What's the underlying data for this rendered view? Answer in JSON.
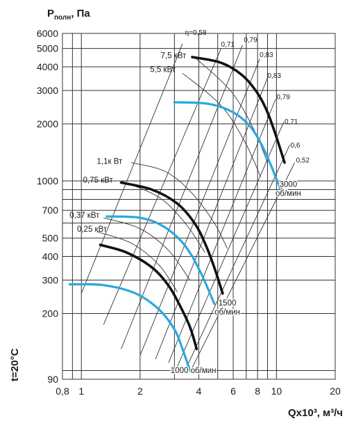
{
  "chart_data": {
    "type": "line",
    "title": "",
    "ylabel_html": "P<sub>полн</sub>, Па",
    "ylabel_main": "P",
    "ylabel_sub": "полн",
    "ylabel_tail": ", Па",
    "xlabel": "Qx10³, м³/ч",
    "side_label": "t=20°C",
    "x_scale": "log",
    "y_scale": "log",
    "xlim": [
      0.8,
      20
    ],
    "ylim": [
      90,
      6000
    ],
    "x_ticks": [
      0.8,
      1,
      2,
      4,
      6,
      8,
      10,
      20
    ],
    "x_tick_labels": [
      "0,8",
      "1",
      "2",
      "4",
      "6",
      "8",
      "10",
      "20"
    ],
    "x_grid": [
      0.8,
      0.9,
      1,
      2,
      3,
      4,
      5,
      6,
      7,
      8,
      9,
      10,
      20
    ],
    "y_ticks": [
      90,
      200,
      300,
      400,
      500,
      700,
      1000,
      2000,
      3000,
      4000,
      5000,
      6000
    ],
    "y_tick_labels": [
      "90",
      "200",
      "300",
      "400",
      "500",
      "700",
      "1000",
      "2000",
      "3000",
      "4000",
      "5000",
      "6000"
    ],
    "y_grid": [
      90,
      100,
      200,
      300,
      400,
      500,
      600,
      700,
      800,
      900,
      1000,
      2000,
      3000,
      4000,
      5000,
      6000
    ],
    "grid": true,
    "series": [
      {
        "name": "7,5 кВт",
        "style": "black",
        "x": [
          3.7,
          5.2,
          6.7,
          8.0,
          9.0,
          10.0,
          11.0
        ],
        "y": [
          4500,
          4200,
          3600,
          2900,
          2300,
          1700,
          1250
        ]
      },
      {
        "name": "5,5 кВт",
        "style": "blue",
        "x": [
          3.0,
          4.5,
          6.0,
          7.3,
          8.4,
          9.4,
          10.4
        ],
        "y": [
          2600,
          2550,
          2300,
          1950,
          1550,
          1200,
          920
        ]
      },
      {
        "name": "0,75 кВт",
        "style": "black",
        "x": [
          1.6,
          2.3,
          3.1,
          3.8,
          4.3,
          4.8,
          5.3
        ],
        "y": [
          980,
          900,
          760,
          600,
          470,
          350,
          255
        ]
      },
      {
        "name": "0,37 кВт",
        "style": "blue",
        "x": [
          1.35,
          2.0,
          2.6,
          3.2,
          3.7,
          4.2,
          4.8
        ],
        "y": [
          650,
          640,
          580,
          490,
          400,
          310,
          225
        ]
      },
      {
        "name": "0,25 кВт",
        "style": "black",
        "x": [
          1.25,
          1.7,
          2.3,
          2.8,
          3.2,
          3.6,
          3.9
        ],
        "y": [
          460,
          420,
          350,
          280,
          220,
          170,
          130
        ]
      },
      {
        "name": "",
        "style": "blue",
        "x": [
          0.87,
          1.3,
          1.9,
          2.5,
          3.0,
          3.3,
          3.6
        ],
        "y": [
          285,
          282,
          255,
          210,
          165,
          130,
          100
        ]
      }
    ],
    "efficiency_lines": [
      {
        "label": "η=0,58",
        "lx": 3.4,
        "ly": 5900,
        "x": [
          1.0,
          3.3
        ],
        "y": [
          255,
          5300
        ]
      },
      {
        "label": "0,71",
        "lx": 5.2,
        "ly": 5100,
        "x": [
          1.3,
          5.2
        ],
        "y": [
          175,
          5000
        ]
      },
      {
        "label": "0,79",
        "lx": 6.8,
        "ly": 5400,
        "x": [
          1.6,
          6.7
        ],
        "y": [
          130,
          5200
        ]
      },
      {
        "label": "0,83",
        "lx": 8.2,
        "ly": 4500,
        "x": [
          2.0,
          8.2
        ],
        "y": [
          120,
          4400
        ]
      },
      {
        "label": "0,83",
        "lx": 9.0,
        "ly": 3500,
        "x": [
          2.4,
          9.0
        ],
        "y": [
          115,
          3500
        ]
      },
      {
        "label": "0,79",
        "lx": 10.0,
        "ly": 2700,
        "x": [
          2.8,
          9.9
        ],
        "y": [
          110,
          2700
        ]
      },
      {
        "label": "0,71",
        "lx": 11.0,
        "ly": 2000,
        "x": [
          3.1,
          10.9
        ],
        "y": [
          105,
          2050
        ]
      },
      {
        "label": "0,6",
        "lx": 11.8,
        "ly": 1500,
        "x": [
          3.4,
          11.7
        ],
        "y": [
          100,
          1550
        ]
      },
      {
        "label": "0,52",
        "lx": 12.6,
        "ly": 1250,
        "x": [
          3.6,
          12.4
        ],
        "y": [
          98,
          1250
        ]
      }
    ],
    "power_arcs": [
      {
        "label": "7,5 кВт",
        "lx": 2.55,
        "ly": 4450,
        "x": [
          3.8,
          5.8,
          7.6,
          9.0
        ],
        "y": [
          4500,
          3000,
          1900,
          1250
        ]
      },
      {
        "label": "5,5 кВт",
        "lx": 2.25,
        "ly": 3750,
        "x": [
          3.3,
          5.2,
          6.9,
          8.3
        ],
        "y": [
          3700,
          2500,
          1600,
          1050
        ]
      },
      {
        "label": "1,1к Вт",
        "lx": 1.2,
        "ly": 1230,
        "x": [
          1.8,
          2.7,
          3.7,
          4.8,
          5.6
        ],
        "y": [
          1250,
          1120,
          860,
          600,
          440
        ]
      },
      {
        "label": "0,75 кВт",
        "lx": 1.02,
        "ly": 980,
        "x": [
          1.6,
          2.5,
          3.4,
          4.3
        ],
        "y": [
          1000,
          820,
          600,
          420
        ]
      },
      {
        "label": "0,37 кВт",
        "lx": 0.87,
        "ly": 640,
        "x": [
          1.3,
          2.0,
          2.8,
          3.6
        ],
        "y": [
          640,
          560,
          430,
          300
        ]
      },
      {
        "label": "0,25 кВт",
        "lx": 0.95,
        "ly": 540,
        "x": [
          1.2,
          1.8,
          2.5,
          3.1
        ],
        "y": [
          540,
          470,
          360,
          260
        ]
      }
    ],
    "speed_labels": [
      {
        "line1": "3000",
        "line2": "об/мин",
        "x": 11.5,
        "y": 930
      },
      {
        "line1": "1500",
        "line2": "об/мин",
        "x": 5.6,
        "y": 220
      },
      {
        "line1": "1000 об/мин",
        "line2": "",
        "x": 3.75,
        "y": 97
      }
    ]
  }
}
